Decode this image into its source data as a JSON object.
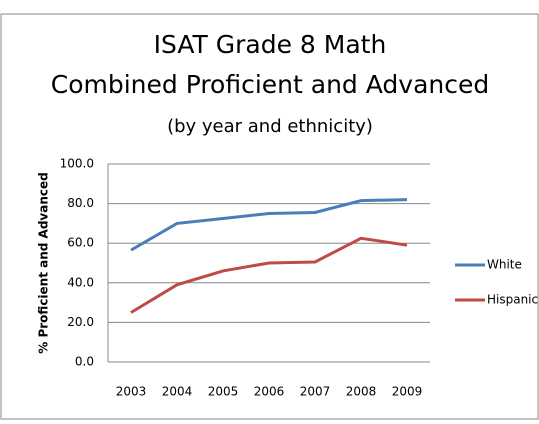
{
  "chart_data": {
    "type": "line",
    "title": [
      "ISAT Grade 8 Math",
      "Combined Proficient and Advanced"
    ],
    "subtitle": "(by year and ethnicity)",
    "y_label": "% Proficient and Advanced",
    "categories": [
      "2003",
      "2004",
      "2005",
      "2006",
      "2007",
      "2008",
      "2009"
    ],
    "series": [
      {
        "name": "White",
        "color": "#4a7ebb",
        "values": [
          56.5,
          70,
          72.5,
          75,
          75.5,
          81.5,
          82
        ]
      },
      {
        "name": "Hispanic",
        "color": "#be4b48",
        "values": [
          25,
          39,
          46,
          50,
          50.5,
          62.5,
          59
        ]
      }
    ],
    "ylim": [
      0,
      100
    ],
    "yticks": [
      {
        "value": 0,
        "label": "0.0"
      },
      {
        "value": 20,
        "label": "20.0"
      },
      {
        "value": 40,
        "label": "40.0"
      },
      {
        "value": 60,
        "label": "60.0"
      },
      {
        "value": 80,
        "label": "80.0"
      },
      {
        "value": 100,
        "label": "100.0"
      }
    ],
    "grid": true,
    "legend": "right"
  }
}
